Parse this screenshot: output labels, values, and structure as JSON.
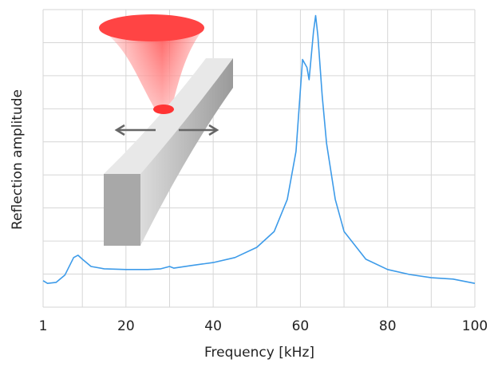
{
  "chart_data": {
    "type": "line",
    "x_label": "Frequency [kHz]",
    "y_label": "Reflection amplitude",
    "xlim": [
      1,
      100
    ],
    "xticks": [
      1,
      {
        "value": 10,
        "label": null
      },
      20,
      {
        "value": 30,
        "label": null
      },
      40,
      {
        "value": 50,
        "label": null
      },
      60,
      {
        "value": 70,
        "label": null
      },
      80,
      {
        "value": 90,
        "label": null
      },
      100
    ],
    "ylim": [
      0,
      9
    ],
    "yticks": [
      {
        "value": 0,
        "label": null
      },
      {
        "value": 1,
        "label": null
      },
      {
        "value": 2,
        "label": null
      },
      {
        "value": 3,
        "label": null
      },
      {
        "value": 4,
        "label": null
      },
      {
        "value": 5,
        "label": null
      },
      {
        "value": 6,
        "label": null
      },
      {
        "value": 7,
        "label": null
      },
      {
        "value": 8,
        "label": null
      },
      {
        "value": 9,
        "label": null
      }
    ],
    "grid": true,
    "color": "#3d9be9",
    "x": [
      1,
      2,
      4,
      6,
      8,
      9,
      10,
      12,
      15,
      20,
      25,
      28,
      30,
      31,
      35,
      40,
      45,
      50,
      54,
      57,
      59,
      60.5,
      61.5,
      62,
      63,
      63.5,
      64,
      65,
      66,
      68,
      70,
      75,
      80,
      85,
      90,
      95,
      100
    ],
    "values": [
      0.8,
      0.72,
      0.75,
      0.97,
      1.5,
      1.57,
      1.45,
      1.23,
      1.16,
      1.14,
      1.14,
      1.16,
      1.23,
      1.18,
      1.26,
      1.35,
      1.5,
      1.81,
      2.29,
      3.26,
      4.71,
      7.49,
      7.25,
      6.88,
      8.33,
      8.82,
      8.21,
      6.4,
      4.95,
      3.26,
      2.29,
      1.45,
      1.14,
      0.99,
      0.89,
      0.85,
      0.72
    ]
  }
}
